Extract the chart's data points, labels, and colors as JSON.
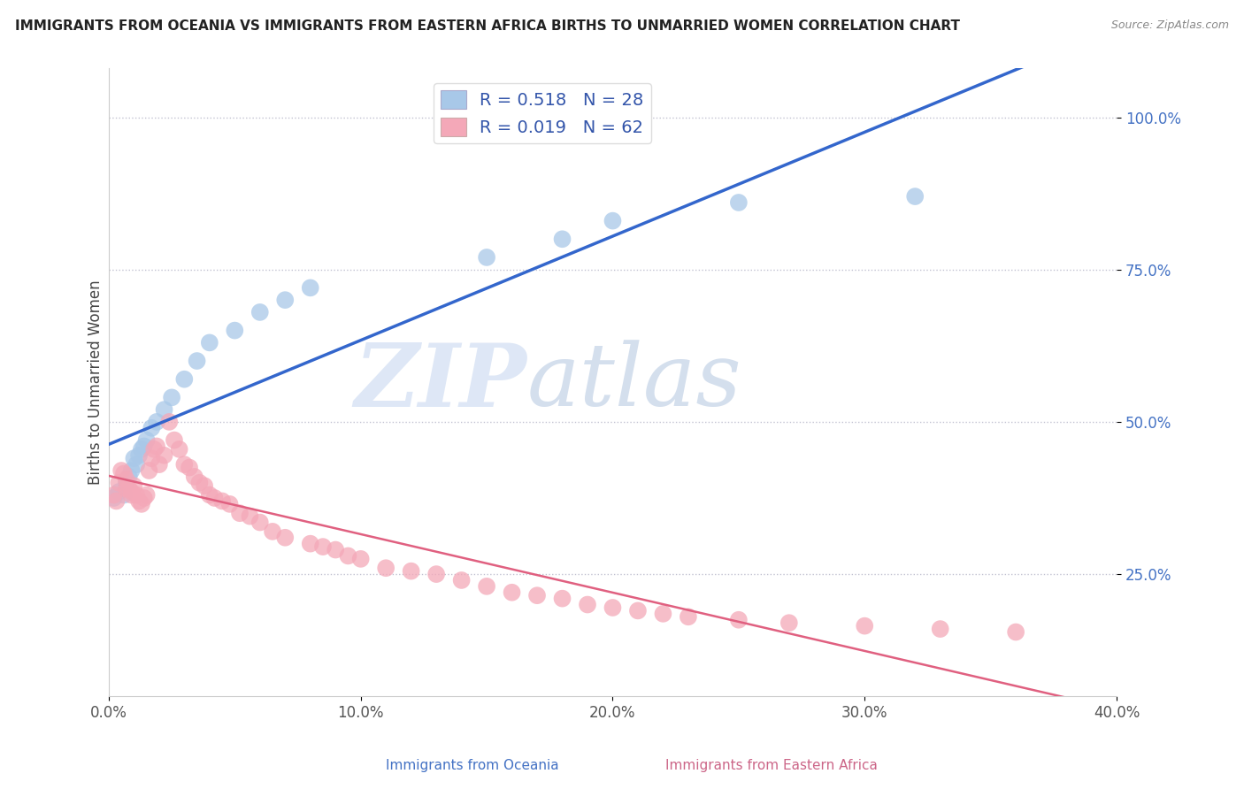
{
  "title": "IMMIGRANTS FROM OCEANIA VS IMMIGRANTS FROM EASTERN AFRICA BIRTHS TO UNMARRIED WOMEN CORRELATION CHART",
  "source": "Source: ZipAtlas.com",
  "xlabel_blue": "Immigrants from Oceania",
  "xlabel_pink": "Immigrants from Eastern Africa",
  "ylabel": "Births to Unmarried Women",
  "watermark_zip": "ZIP",
  "watermark_atlas": "atlas",
  "xlim": [
    0.0,
    0.4
  ],
  "ylim": [
    0.05,
    1.08
  ],
  "xtick_labels": [
    "0.0%",
    "10.0%",
    "20.0%",
    "30.0%",
    "40.0%"
  ],
  "xtick_vals": [
    0.0,
    0.1,
    0.2,
    0.3,
    0.4
  ],
  "ytick_labels": [
    "25.0%",
    "50.0%",
    "75.0%",
    "100.0%"
  ],
  "ytick_vals": [
    0.25,
    0.5,
    0.75,
    1.0
  ],
  "R_blue": 0.518,
  "N_blue": 28,
  "R_pink": 0.019,
  "N_pink": 62,
  "blue_color": "#a8c8e8",
  "pink_color": "#f4a8b8",
  "blue_line_color": "#3366cc",
  "pink_line_color": "#e06080",
  "legend_blue_r": "R = 0.518",
  "legend_blue_n": "N = 28",
  "legend_pink_r": "R = 0.019",
  "legend_pink_n": "N = 62",
  "blue_x": [
    0.002,
    0.004,
    0.006,
    0.007,
    0.008,
    0.009,
    0.01,
    0.011,
    0.012,
    0.013,
    0.014,
    0.015,
    0.017,
    0.019,
    0.022,
    0.025,
    0.03,
    0.035,
    0.04,
    0.05,
    0.06,
    0.07,
    0.08,
    0.15,
    0.18,
    0.2,
    0.25,
    0.32
  ],
  "blue_y": [
    0.375,
    0.385,
    0.38,
    0.4,
    0.41,
    0.42,
    0.44,
    0.43,
    0.445,
    0.455,
    0.46,
    0.47,
    0.49,
    0.5,
    0.52,
    0.54,
    0.57,
    0.6,
    0.63,
    0.65,
    0.68,
    0.7,
    0.72,
    0.77,
    0.8,
    0.83,
    0.86,
    0.87
  ],
  "pink_x": [
    0.002,
    0.003,
    0.004,
    0.005,
    0.006,
    0.007,
    0.008,
    0.009,
    0.01,
    0.011,
    0.012,
    0.013,
    0.014,
    0.015,
    0.016,
    0.017,
    0.018,
    0.019,
    0.02,
    0.022,
    0.024,
    0.026,
    0.028,
    0.03,
    0.032,
    0.034,
    0.036,
    0.038,
    0.04,
    0.042,
    0.045,
    0.048,
    0.052,
    0.056,
    0.06,
    0.065,
    0.07,
    0.08,
    0.085,
    0.09,
    0.095,
    0.1,
    0.11,
    0.12,
    0.13,
    0.14,
    0.15,
    0.16,
    0.17,
    0.18,
    0.19,
    0.2,
    0.21,
    0.22,
    0.23,
    0.25,
    0.27,
    0.3,
    0.33,
    0.36,
    0.007,
    0.009
  ],
  "pink_y": [
    0.38,
    0.37,
    0.4,
    0.42,
    0.415,
    0.405,
    0.39,
    0.385,
    0.395,
    0.38,
    0.37,
    0.365,
    0.375,
    0.38,
    0.42,
    0.44,
    0.455,
    0.46,
    0.43,
    0.445,
    0.5,
    0.47,
    0.455,
    0.43,
    0.425,
    0.41,
    0.4,
    0.395,
    0.38,
    0.375,
    0.37,
    0.365,
    0.35,
    0.345,
    0.335,
    0.32,
    0.31,
    0.3,
    0.295,
    0.29,
    0.28,
    0.275,
    0.26,
    0.255,
    0.25,
    0.24,
    0.23,
    0.22,
    0.215,
    0.21,
    0.2,
    0.195,
    0.19,
    0.185,
    0.18,
    0.175,
    0.17,
    0.165,
    0.16,
    0.155,
    0.39,
    0.38
  ]
}
